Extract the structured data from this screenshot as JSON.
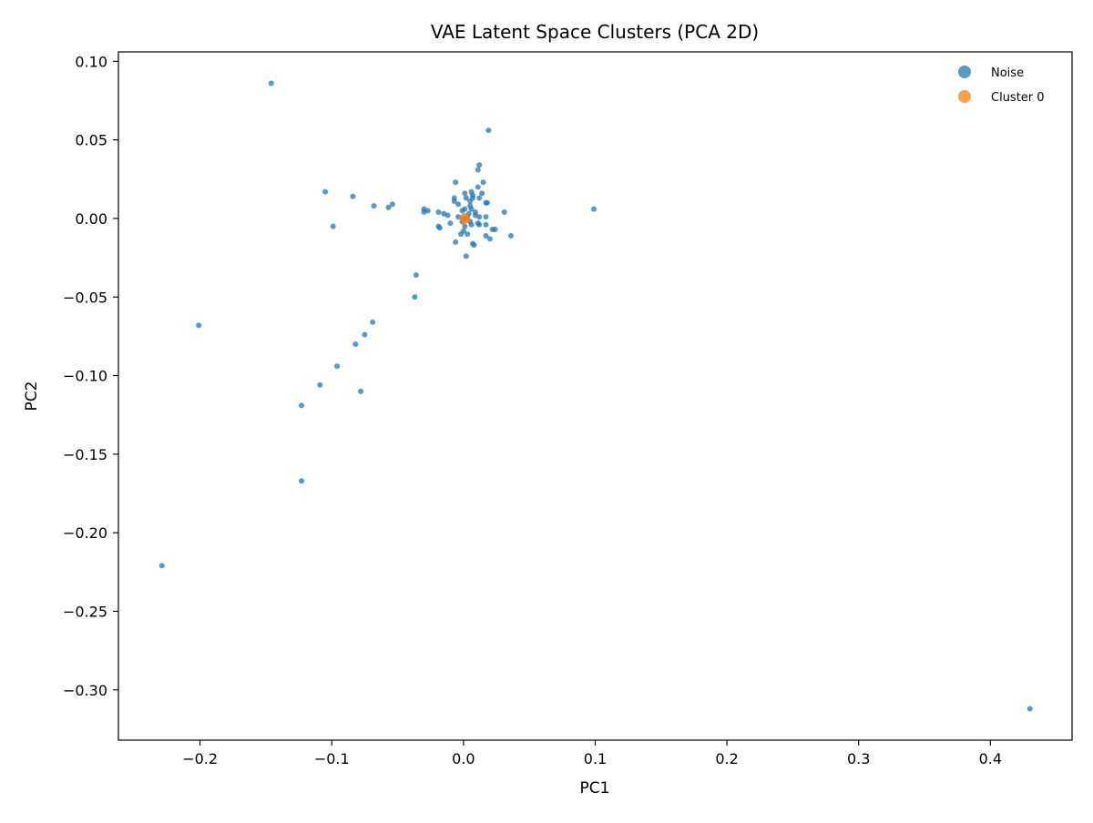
{
  "chart_data": {
    "type": "scatter",
    "title": "VAE Latent Space Clusters (PCA 2D)",
    "xlabel": "PC1",
    "ylabel": "PC2",
    "xlim": [
      -0.262,
      0.462
    ],
    "ylim": [
      -0.332,
      0.106
    ],
    "xticks": [
      -0.2,
      -0.1,
      0.0,
      0.1,
      0.2,
      0.3,
      0.4
    ],
    "yticks": [
      0.1,
      0.05,
      0.0,
      -0.05,
      -0.1,
      -0.15,
      -0.2,
      -0.25,
      -0.3
    ],
    "xtick_labels": [
      "−0.2",
      "−0.1",
      "0.0",
      "0.1",
      "0.2",
      "0.3",
      "0.4"
    ],
    "ytick_labels": [
      "0.10",
      "0.05",
      "0.00",
      "−0.05",
      "−0.10",
      "−0.15",
      "−0.20",
      "−0.25",
      "−0.30"
    ],
    "grid": false,
    "legend_position": "top-right",
    "series": [
      {
        "name": "Noise",
        "color": "#1f77b4",
        "points": [
          [
            -0.146,
            0.086
          ],
          [
            0.019,
            0.056
          ],
          [
            0.012,
            0.034
          ],
          [
            0.011,
            0.031
          ],
          [
            -0.105,
            0.017
          ],
          [
            -0.084,
            0.014
          ],
          [
            -0.054,
            0.009
          ],
          [
            -0.057,
            0.007
          ],
          [
            -0.068,
            0.008
          ],
          [
            -0.099,
            -0.005
          ],
          [
            0.099,
            0.006
          ],
          [
            0.031,
            0.004
          ],
          [
            0.036,
            -0.011
          ],
          [
            -0.006,
            0.023
          ],
          [
            0.015,
            0.023
          ],
          [
            0.011,
            0.02
          ],
          [
            0.006,
            0.017
          ],
          [
            0.001,
            0.016
          ],
          [
            0.014,
            0.016
          ],
          [
            0.007,
            0.015
          ],
          [
            -0.007,
            0.013
          ],
          [
            0.002,
            0.013
          ],
          [
            0.007,
            0.013
          ],
          [
            -0.007,
            0.011
          ],
          [
            0.005,
            0.011
          ],
          [
            0.012,
            0.013
          ],
          [
            0.017,
            0.01
          ],
          [
            0.018,
            0.01
          ],
          [
            -0.004,
            0.009
          ],
          [
            0.005,
            0.008
          ],
          [
            0.001,
            0.006
          ],
          [
            0.006,
            0.006
          ],
          [
            -0.001,
            0.005
          ],
          [
            0.009,
            0.004
          ],
          [
            -0.03,
            0.006
          ],
          [
            -0.027,
            0.005
          ],
          [
            -0.03,
            0.004
          ],
          [
            -0.019,
            0.004
          ],
          [
            -0.015,
            0.003
          ],
          [
            -0.012,
            0.002
          ],
          [
            -0.004,
            0.001
          ],
          [
            0.003,
            0.001
          ],
          [
            0.009,
            0.002
          ],
          [
            0.012,
            0.001
          ],
          [
            0.017,
            0.001
          ],
          [
            -0.01,
            -0.003
          ],
          [
            -0.001,
            -0.002
          ],
          [
            0.005,
            -0.002
          ],
          [
            0.011,
            -0.003
          ],
          [
            0.012,
            -0.004
          ],
          [
            0.017,
            -0.004
          ],
          [
            -0.019,
            -0.005
          ],
          [
            -0.018,
            -0.006
          ],
          [
            0.001,
            -0.005
          ],
          [
            0.006,
            -0.004
          ],
          [
            0.022,
            -0.007
          ],
          [
            0.024,
            -0.007
          ],
          [
            -0.002,
            -0.01
          ],
          [
            0.003,
            -0.01
          ],
          [
            0.017,
            -0.011
          ],
          [
            -0.006,
            -0.015
          ],
          [
            0.007,
            -0.016
          ],
          [
            0.008,
            -0.017
          ],
          [
            0.02,
            -0.013
          ],
          [
            0.002,
            -0.024
          ],
          [
            0.0,
            -0.008
          ],
          [
            0.004,
            0.003
          ],
          [
            -0.036,
            -0.036
          ],
          [
            -0.037,
            -0.05
          ],
          [
            -0.069,
            -0.066
          ],
          [
            -0.075,
            -0.074
          ],
          [
            -0.082,
            -0.08
          ],
          [
            -0.096,
            -0.094
          ],
          [
            -0.109,
            -0.106
          ],
          [
            -0.078,
            -0.11
          ],
          [
            -0.123,
            -0.119
          ],
          [
            -0.123,
            -0.167
          ],
          [
            -0.201,
            -0.068
          ],
          [
            -0.229,
            -0.221
          ],
          [
            0.43,
            -0.312
          ]
        ]
      },
      {
        "name": "Cluster 0",
        "color": "#ff7f0e",
        "points": [
          [
            0.001,
            0.001
          ],
          [
            0.0,
            0.0
          ],
          [
            0.002,
            0.0
          ],
          [
            0.001,
            -0.001
          ]
        ]
      }
    ]
  }
}
